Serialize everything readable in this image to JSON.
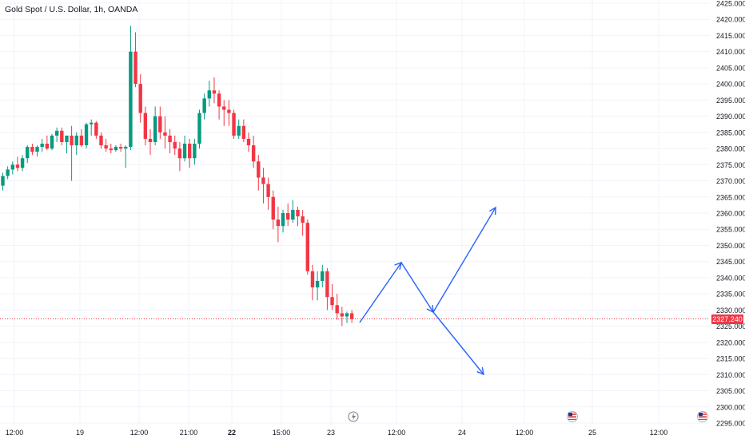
{
  "chart_data": {
    "type": "candlestick",
    "title": "Gold Spot / U.S. Dollar, 1h, OANDA",
    "ylim": [
      2295,
      2425
    ],
    "y_ticks": [
      "2425.000",
      "2420.000",
      "2415.000",
      "2410.000",
      "2405.000",
      "2400.000",
      "2395.000",
      "2390.000",
      "2385.000",
      "2380.000",
      "2375.000",
      "2370.000",
      "2365.000",
      "2360.000",
      "2355.000",
      "2350.000",
      "2345.000",
      "2340.000",
      "2335.000",
      "2330.000",
      "2325.000",
      "2320.000",
      "2315.000",
      "2310.000",
      "2305.000",
      "2300.000",
      "2295.000"
    ],
    "x_ticks": [
      "12:00",
      "19",
      "12:00",
      "21:00",
      "22",
      "15:00",
      "23",
      "12:00",
      "24",
      "12:00",
      "25",
      "12:00"
    ],
    "current_price": "2327.240",
    "colors": {
      "up": "#089981",
      "down": "#f23645",
      "projection": "#2962ff",
      "grid": "#f0f3fa",
      "axis_text": "#131722"
    },
    "grid": true,
    "candles": [
      [
        2368.5,
        2372.5,
        2367.0,
        2371.5
      ],
      [
        2371.5,
        2374.5,
        2370.5,
        2373.5
      ],
      [
        2373.5,
        2376.0,
        2372.0,
        2375.0
      ],
      [
        2375.0,
        2377.5,
        2373.0,
        2374.0
      ],
      [
        2374.0,
        2378.0,
        2373.0,
        2377.0
      ],
      [
        2377.0,
        2381.0,
        2375.5,
        2380.5
      ],
      [
        2380.5,
        2381.5,
        2378.0,
        2379.0
      ],
      [
        2379.0,
        2381.0,
        2377.5,
        2380.5
      ],
      [
        2380.5,
        2383.0,
        2379.0,
        2381.5
      ],
      [
        2381.5,
        2384.0,
        2379.5,
        2380.0
      ],
      [
        2380.0,
        2384.5,
        2379.5,
        2384.0
      ],
      [
        2384.0,
        2386.5,
        2382.0,
        2385.5
      ],
      [
        2385.5,
        2386.5,
        2381.0,
        2382.0
      ],
      [
        2382.0,
        2384.0,
        2378.5,
        2384.0
      ],
      [
        2384.0,
        2387.0,
        2370.0,
        2381.0
      ],
      [
        2381.0,
        2385.0,
        2378.0,
        2384.0
      ],
      [
        2384.0,
        2386.0,
        2380.5,
        2381.0
      ],
      [
        2381.0,
        2388.0,
        2380.0,
        2387.5
      ],
      [
        2387.5,
        2389.0,
        2384.0,
        2388.0
      ],
      [
        2388.0,
        2388.5,
        2383.0,
        2384.0
      ],
      [
        2384.0,
        2385.0,
        2380.0,
        2381.0
      ],
      [
        2381.0,
        2383.0,
        2379.0,
        2380.0
      ],
      [
        2380.0,
        2381.5,
        2378.5,
        2379.5
      ],
      [
        2379.5,
        2381.0,
        2379.0,
        2380.5
      ],
      [
        2380.5,
        2381.5,
        2379.0,
        2380.0
      ],
      [
        2380.0,
        2381.0,
        2374.0,
        2380.5
      ],
      [
        2380.5,
        2418.0,
        2379.5,
        2410.0
      ],
      [
        2410.0,
        2416.0,
        2399.0,
        2400.0
      ],
      [
        2400.0,
        2403.0,
        2388.0,
        2391.0
      ],
      [
        2391.0,
        2393.0,
        2381.0,
        2383.0
      ],
      [
        2383.0,
        2386.0,
        2378.0,
        2382.0
      ],
      [
        2382.0,
        2393.0,
        2381.0,
        2390.0
      ],
      [
        2390.0,
        2393.0,
        2383.0,
        2385.0
      ],
      [
        2385.0,
        2390.0,
        2380.0,
        2384.0
      ],
      [
        2384.0,
        2386.0,
        2378.5,
        2382.0
      ],
      [
        2382.0,
        2384.0,
        2378.0,
        2380.0
      ],
      [
        2380.0,
        2382.0,
        2373.0,
        2377.0
      ],
      [
        2377.0,
        2384.0,
        2376.0,
        2381.5
      ],
      [
        2381.5,
        2383.0,
        2374.0,
        2377.0
      ],
      [
        2377.0,
        2383.0,
        2375.0,
        2381.5
      ],
      [
        2381.5,
        2392.0,
        2380.0,
        2391.0
      ],
      [
        2391.0,
        2397.0,
        2389.0,
        2395.5
      ],
      [
        2395.5,
        2401.0,
        2393.0,
        2398.0
      ],
      [
        2398.0,
        2402.0,
        2394.0,
        2397.0
      ],
      [
        2397.0,
        2398.0,
        2389.0,
        2393.0
      ],
      [
        2393.0,
        2395.0,
        2387.0,
        2392.0
      ],
      [
        2392.0,
        2395.0,
        2387.0,
        2391.0
      ],
      [
        2391.0,
        2392.0,
        2383.0,
        2384.0
      ],
      [
        2384.0,
        2389.0,
        2383.0,
        2387.0
      ],
      [
        2387.0,
        2389.0,
        2382.0,
        2383.0
      ],
      [
        2383.0,
        2385.0,
        2379.0,
        2381.0
      ],
      [
        2381.0,
        2384.0,
        2374.0,
        2376.0
      ],
      [
        2376.0,
        2378.0,
        2367.0,
        2371.0
      ],
      [
        2371.0,
        2374.0,
        2363.0,
        2369.0
      ],
      [
        2369.0,
        2371.0,
        2361.0,
        2365.0
      ],
      [
        2365.0,
        2367.0,
        2355.0,
        2358.0
      ],
      [
        2358.0,
        2362.0,
        2351.0,
        2356.0
      ],
      [
        2356.0,
        2361.0,
        2354.0,
        2360.0
      ],
      [
        2360.0,
        2363.0,
        2356.0,
        2358.0
      ],
      [
        2358.0,
        2364.0,
        2357.0,
        2361.0
      ],
      [
        2361.0,
        2362.0,
        2356.0,
        2359.0
      ],
      [
        2359.0,
        2361.0,
        2353.0,
        2357.0
      ],
      [
        2357.0,
        2358.0,
        2341.0,
        2342.0
      ],
      [
        2342.0,
        2344.0,
        2333.0,
        2337.0
      ],
      [
        2337.0,
        2342.0,
        2333.0,
        2339.0
      ],
      [
        2339.0,
        2344.0,
        2337.0,
        2342.0
      ],
      [
        2342.0,
        2343.0,
        2330.0,
        2334.0
      ],
      [
        2334.0,
        2338.0,
        2330.0,
        2331.5
      ],
      [
        2331.5,
        2335.0,
        2327.0,
        2329.0
      ],
      [
        2329.0,
        2331.0,
        2325.0,
        2328.0
      ],
      [
        2328.0,
        2329.5,
        2326.0,
        2329.0
      ],
      [
        2329.0,
        2330.0,
        2326.0,
        2327.2
      ]
    ],
    "projection": [
      [
        450,
        404
      ],
      [
        502,
        329
      ],
      [
        542,
        391
      ],
      [
        620,
        260
      ]
    ],
    "projection_down": [
      [
        542,
        391
      ],
      [
        605,
        469
      ]
    ],
    "icons": [
      "lightning-event-icon",
      "us-flag-event-icon",
      "us-flag-event-icon"
    ]
  }
}
